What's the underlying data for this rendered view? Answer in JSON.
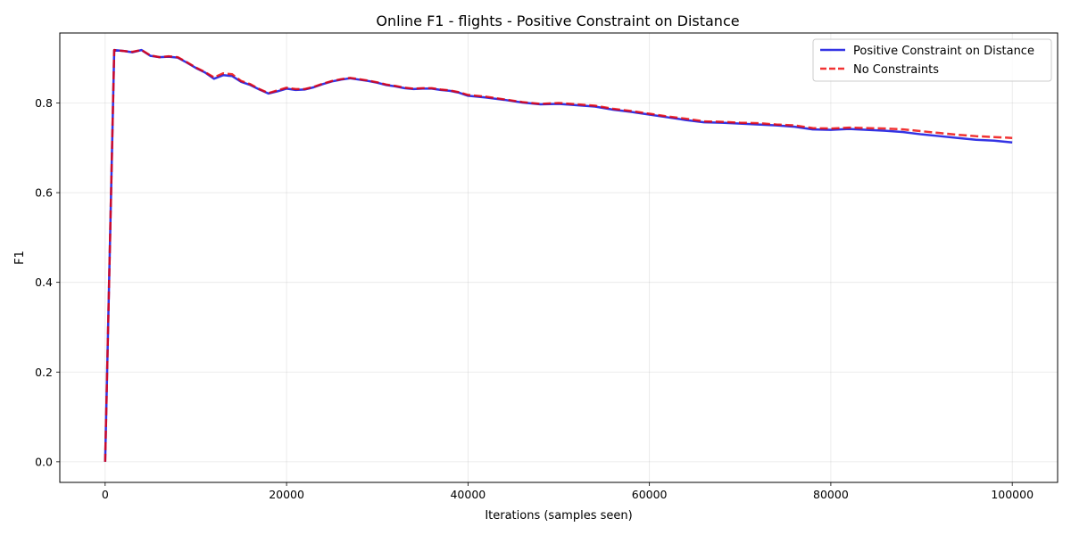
{
  "chart_data": {
    "type": "line",
    "title": "Online F1 - flights - Positive Constraint on Distance",
    "xlabel": "Iterations (samples seen)",
    "ylabel": "F1",
    "xlim": [
      -5000,
      105000
    ],
    "ylim": [
      -0.046,
      0.956
    ],
    "xticks": [
      0,
      20000,
      40000,
      60000,
      80000,
      100000
    ],
    "xtick_labels": [
      "0",
      "20000",
      "40000",
      "60000",
      "80000",
      "100000"
    ],
    "yticks": [
      0.0,
      0.2,
      0.4,
      0.6,
      0.8
    ],
    "ytick_labels": [
      "0.0",
      "0.2",
      "0.4",
      "0.6",
      "0.8"
    ],
    "grid": true,
    "legend_position": "top-right",
    "x": [
      0,
      1000,
      2000,
      3000,
      4000,
      5000,
      6000,
      7000,
      8000,
      9000,
      10000,
      11000,
      12000,
      13000,
      14000,
      15000,
      16000,
      17000,
      18000,
      19000,
      20000,
      21000,
      22000,
      23000,
      24000,
      25000,
      26000,
      27000,
      28000,
      29000,
      30000,
      31000,
      32000,
      33000,
      34000,
      35000,
      36000,
      37000,
      38000,
      39000,
      40000,
      42000,
      44000,
      46000,
      48000,
      50000,
      52000,
      54000,
      56000,
      58000,
      60000,
      62000,
      64000,
      66000,
      68000,
      70000,
      72000,
      74000,
      76000,
      78000,
      80000,
      82000,
      84000,
      86000,
      88000,
      90000,
      92000,
      94000,
      96000,
      98000,
      100000
    ],
    "series": [
      {
        "name": "Positive Constraint on Distance",
        "color": "#0000dd",
        "style": "solid",
        "values": [
          0.0,
          0.918,
          0.916,
          0.913,
          0.918,
          0.905,
          0.902,
          0.903,
          0.901,
          0.89,
          0.878,
          0.868,
          0.854,
          0.862,
          0.86,
          0.847,
          0.84,
          0.83,
          0.821,
          0.826,
          0.832,
          0.829,
          0.83,
          0.835,
          0.842,
          0.848,
          0.852,
          0.855,
          0.852,
          0.849,
          0.845,
          0.84,
          0.837,
          0.833,
          0.831,
          0.832,
          0.832,
          0.829,
          0.827,
          0.823,
          0.816,
          0.812,
          0.807,
          0.801,
          0.797,
          0.798,
          0.795,
          0.792,
          0.785,
          0.78,
          0.774,
          0.768,
          0.762,
          0.757,
          0.756,
          0.754,
          0.752,
          0.75,
          0.747,
          0.741,
          0.74,
          0.742,
          0.74,
          0.738,
          0.735,
          0.73,
          0.726,
          0.722,
          0.718,
          0.716,
          0.712
        ]
      },
      {
        "name": "No Constraints",
        "color": "#ee0000",
        "style": "dashed",
        "values": [
          0.0,
          0.918,
          0.916,
          0.914,
          0.918,
          0.906,
          0.902,
          0.904,
          0.902,
          0.891,
          0.879,
          0.869,
          0.857,
          0.866,
          0.864,
          0.849,
          0.842,
          0.831,
          0.822,
          0.828,
          0.834,
          0.831,
          0.831,
          0.836,
          0.843,
          0.849,
          0.853,
          0.856,
          0.853,
          0.85,
          0.846,
          0.841,
          0.838,
          0.834,
          0.832,
          0.833,
          0.833,
          0.83,
          0.828,
          0.824,
          0.818,
          0.814,
          0.808,
          0.802,
          0.798,
          0.8,
          0.797,
          0.794,
          0.787,
          0.782,
          0.776,
          0.77,
          0.765,
          0.759,
          0.758,
          0.756,
          0.755,
          0.752,
          0.75,
          0.744,
          0.743,
          0.745,
          0.744,
          0.743,
          0.741,
          0.737,
          0.733,
          0.729,
          0.726,
          0.724,
          0.722
        ]
      }
    ]
  }
}
